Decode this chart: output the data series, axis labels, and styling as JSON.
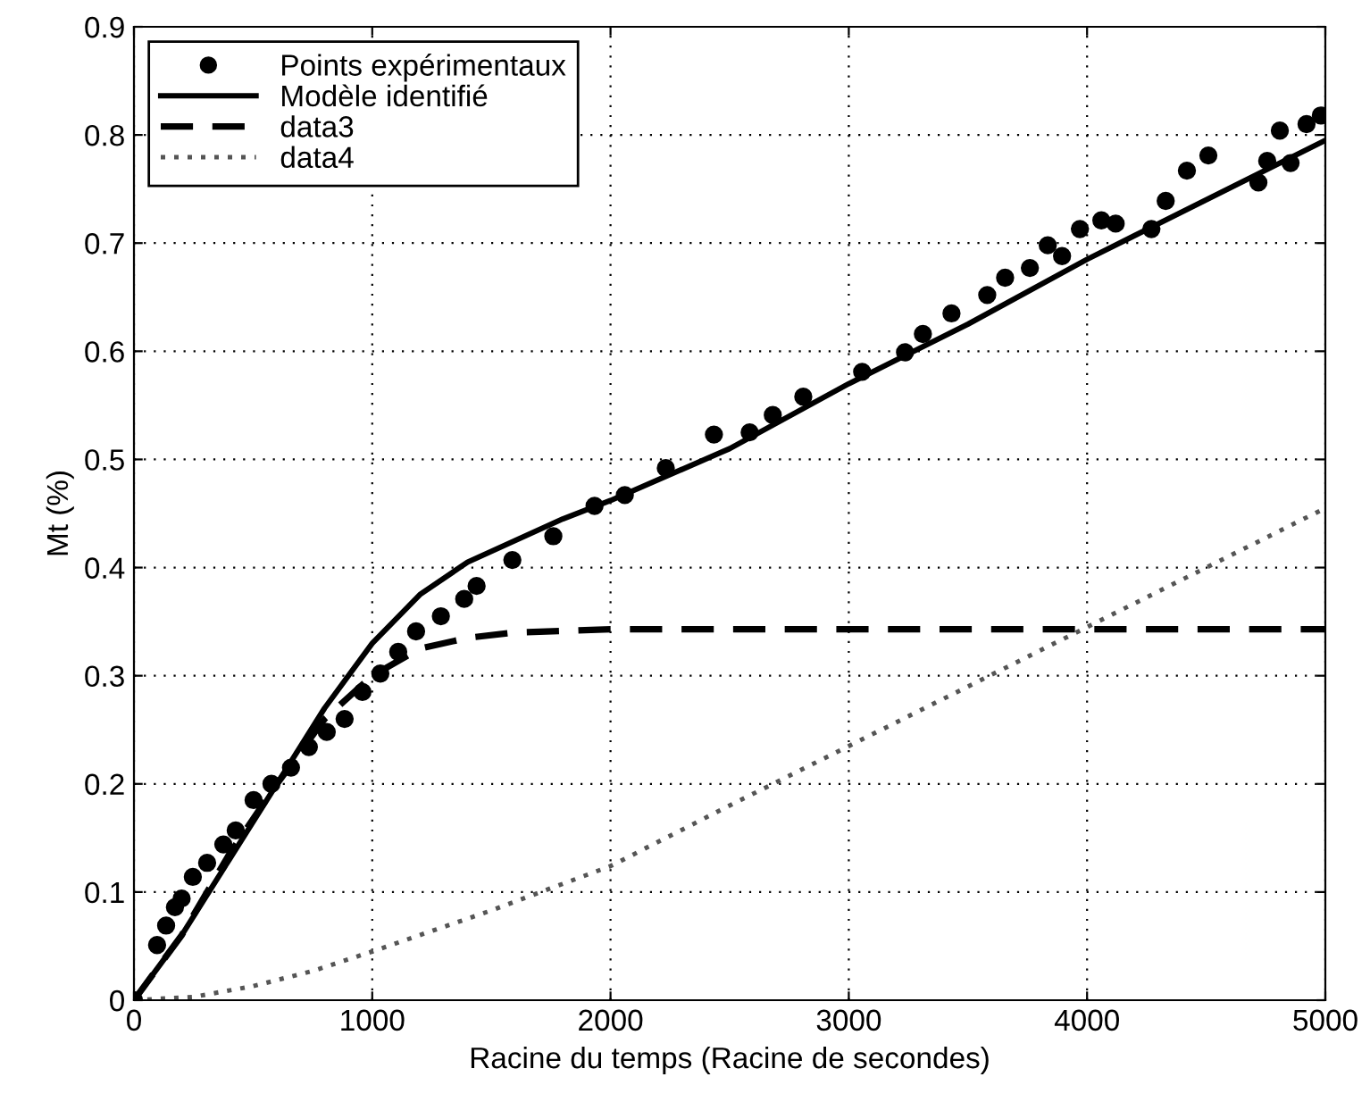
{
  "chart_data": {
    "type": "line",
    "xlabel": "Racine du temps (Racine de secondes)",
    "ylabel": "Mt (%)",
    "xlim": [
      0,
      5000
    ],
    "ylim": [
      0,
      0.9
    ],
    "xticks": [
      0,
      1000,
      2000,
      3000,
      4000,
      5000
    ],
    "yticks": [
      0,
      0.1,
      0.2,
      0.3,
      0.4,
      0.5,
      0.6,
      0.7,
      0.8,
      0.9
    ],
    "grid": true,
    "legend": "top left",
    "series": [
      {
        "name": "Points expérimentaux",
        "type": "scatter",
        "marker": "circle",
        "color": "#000000",
        "x": [
          0,
          97,
          135,
          172,
          200,
          247,
          307,
          375,
          427,
          502,
          577,
          659,
          734,
          809,
          884,
          959,
          1034,
          1109,
          1184,
          1288,
          1386,
          1438,
          1588,
          1760,
          1933,
          2060,
          2232,
          2434,
          2584,
          2681,
          2809,
          3056,
          3236,
          3311,
          3431,
          3581,
          3656,
          3760,
          3835,
          3895,
          3970,
          4060,
          4120,
          4270,
          4330,
          4419,
          4509,
          4719,
          4756,
          4809,
          4854,
          4921,
          4981
        ],
        "values": [
          0,
          0.051,
          0.069,
          0.086,
          0.094,
          0.114,
          0.127,
          0.144,
          0.157,
          0.185,
          0.2,
          0.215,
          0.234,
          0.248,
          0.26,
          0.285,
          0.302,
          0.322,
          0.341,
          0.355,
          0.371,
          0.383,
          0.407,
          0.429,
          0.457,
          0.467,
          0.492,
          0.523,
          0.525,
          0.541,
          0.558,
          0.581,
          0.599,
          0.616,
          0.635,
          0.652,
          0.668,
          0.677,
          0.698,
          0.688,
          0.713,
          0.721,
          0.718,
          0.713,
          0.739,
          0.767,
          0.781,
          0.756,
          0.776,
          0.804,
          0.774,
          0.81,
          0.818
        ]
      },
      {
        "name": "Modèle identifié",
        "line_style": "solid",
        "color": "#000000",
        "x": [
          0,
          200,
          400,
          600,
          800,
          1000,
          1200,
          1400,
          1600,
          1800,
          2000,
          2500,
          3000,
          3500,
          4000,
          4500,
          5000
        ],
        "values": [
          0,
          0.06,
          0.13,
          0.2,
          0.27,
          0.33,
          0.375,
          0.405,
          0.425,
          0.445,
          0.462,
          0.51,
          0.57,
          0.625,
          0.685,
          0.74,
          0.795
        ]
      },
      {
        "name": "data3",
        "line_style": "dashed",
        "color": "#000000",
        "x": [
          0,
          200,
          400,
          600,
          800,
          1000,
          1200,
          1400,
          1600,
          2000,
          5000
        ],
        "values": [
          0,
          0.06,
          0.135,
          0.2,
          0.26,
          0.3,
          0.325,
          0.335,
          0.34,
          0.343,
          0.343
        ]
      },
      {
        "name": "data4",
        "line_style": "dotted",
        "color": "#555555",
        "x": [
          0,
          250,
          500,
          750,
          1000,
          1500,
          2000,
          2500,
          3000,
          3500,
          4000,
          4500,
          5000
        ],
        "values": [
          0,
          0.003,
          0.013,
          0.027,
          0.045,
          0.083,
          0.124,
          0.18,
          0.235,
          0.29,
          0.345,
          0.4,
          0.455
        ]
      }
    ]
  }
}
